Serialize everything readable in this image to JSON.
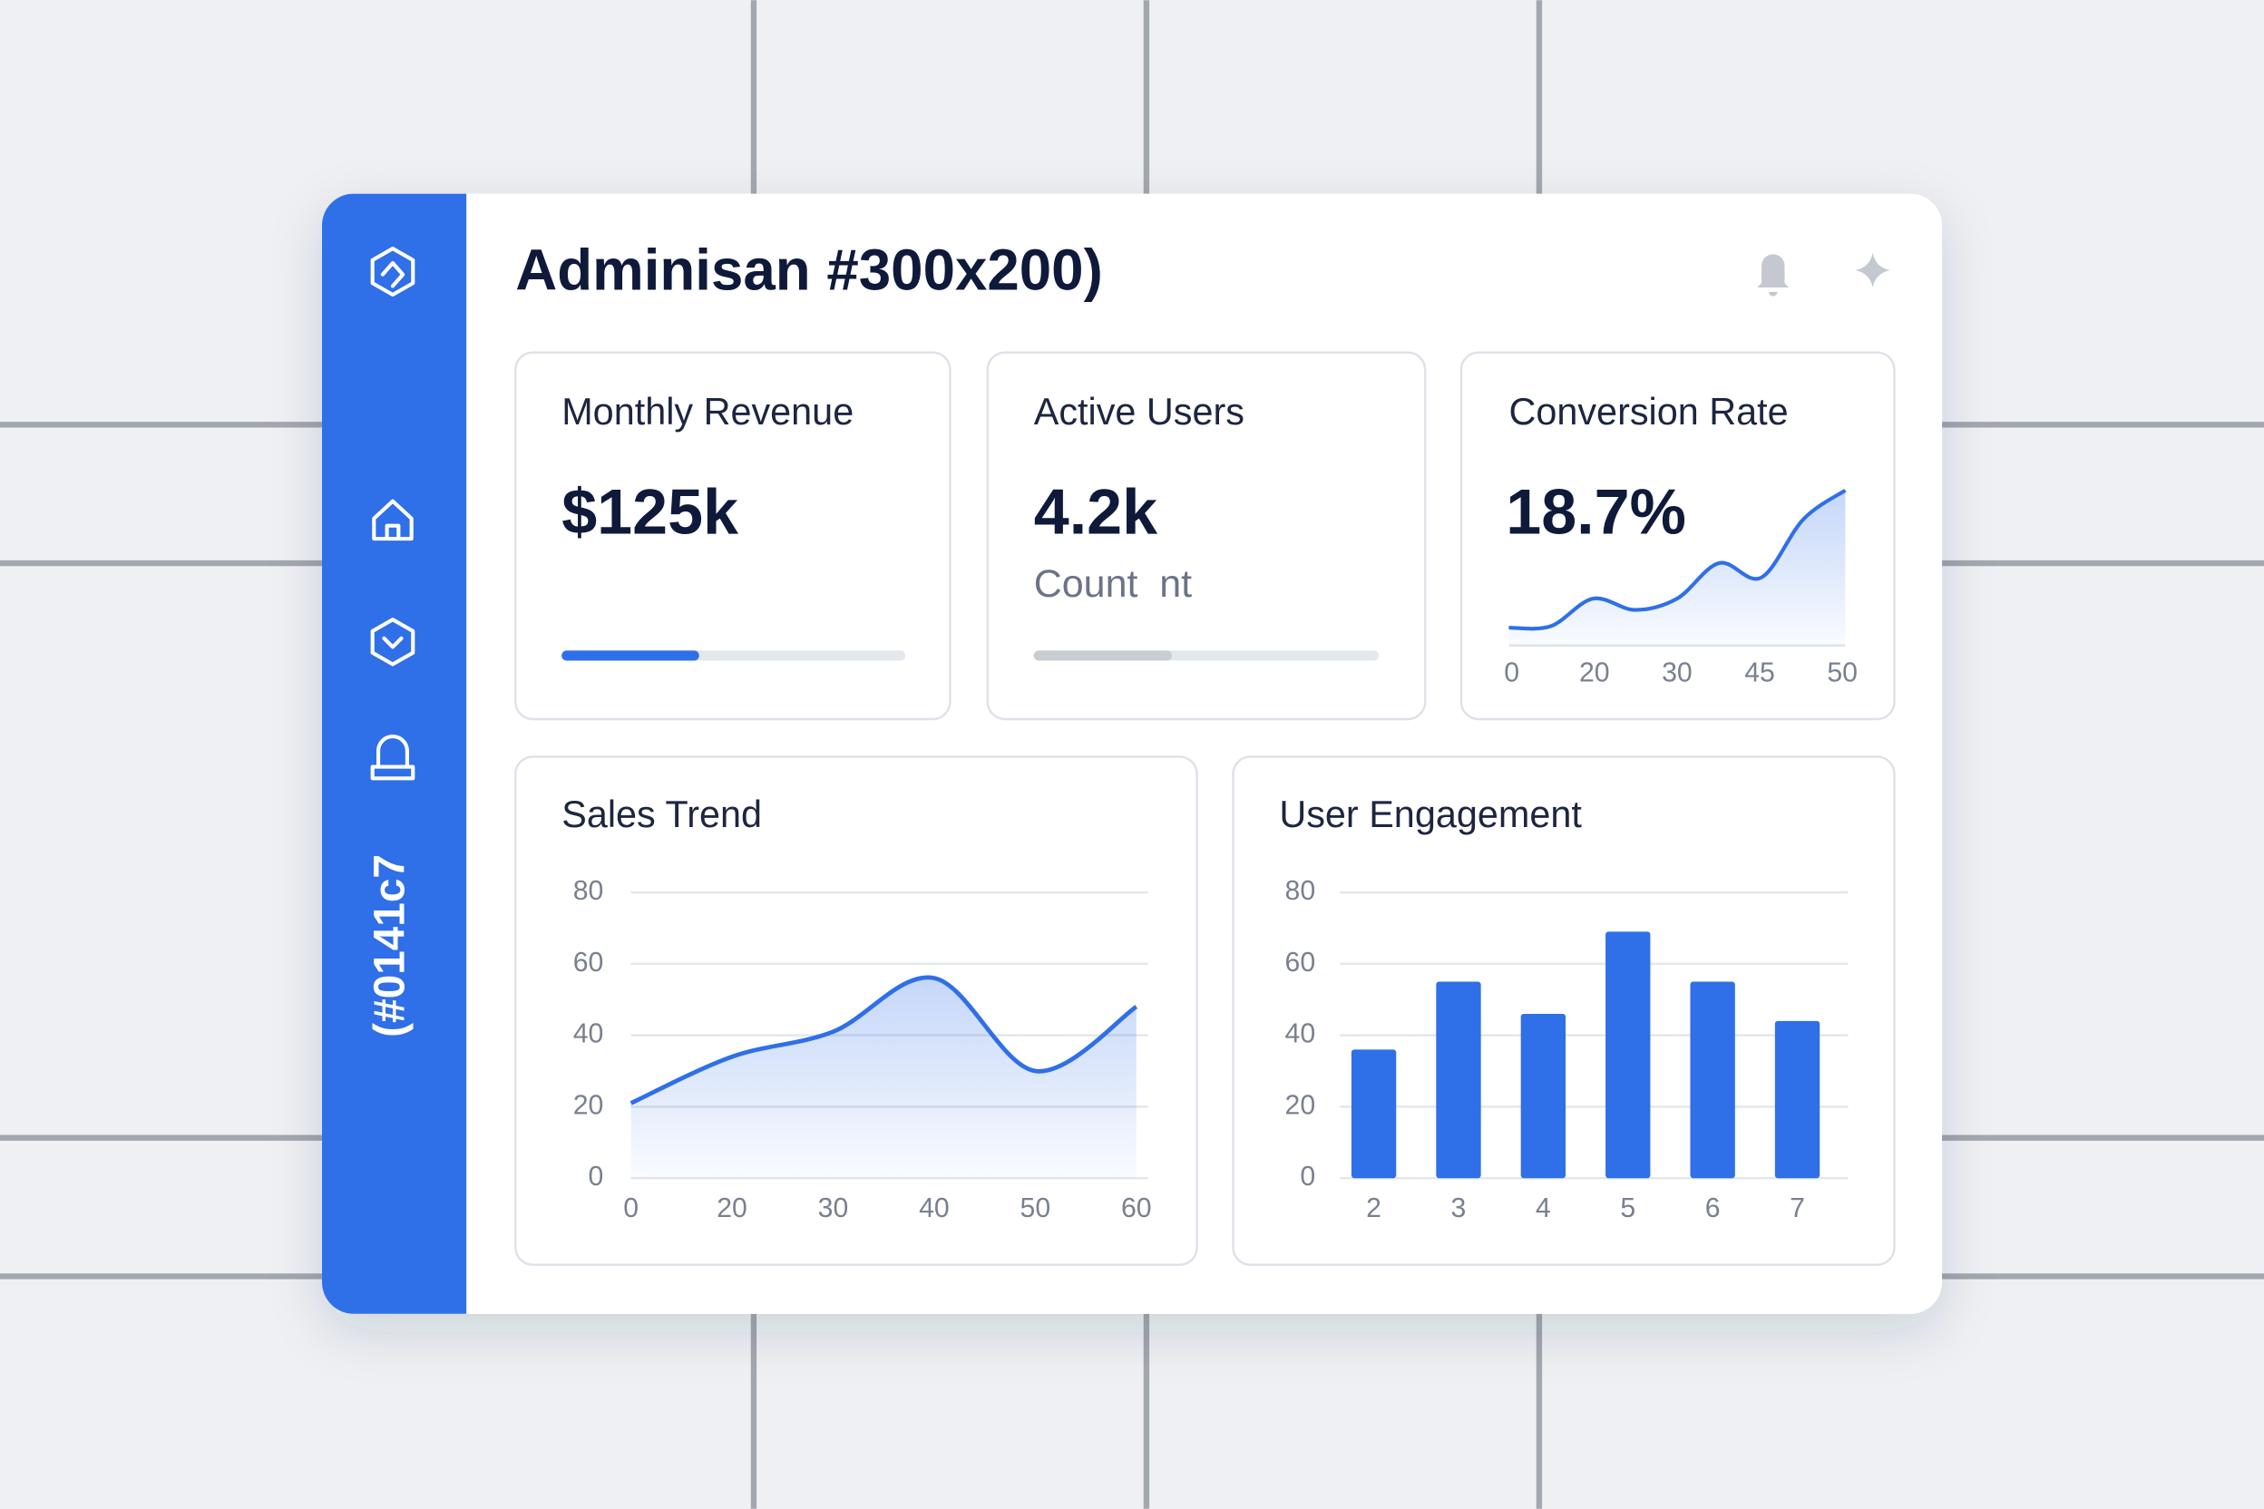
{
  "header": {
    "title": "Adminisan #300x200)"
  },
  "sidebar": {
    "label": "(#0141c7"
  },
  "kpis": [
    {
      "label": "Monthly Revenue",
      "value": "$125k",
      "progress": 40
    },
    {
      "label": "Active Users",
      "value": "4.2k",
      "subtitle": "Count  nt",
      "progress": 40
    },
    {
      "label": "Conversion Rate",
      "value": "18.7%",
      "sparkline": {
        "type": "area",
        "values": [
          11,
          12,
          29,
          22,
          29,
          51,
          42,
          78,
          96
        ],
        "ylim": [
          0,
          100
        ],
        "xticks": [
          "0",
          "20",
          "30",
          "45",
          "50"
        ],
        "color": "#2f6fe8"
      }
    }
  ],
  "charts": [
    {
      "type": "line",
      "title": "Sales Trend",
      "categories": [
        "0",
        "20",
        "30",
        "40",
        "50",
        "60"
      ],
      "values": [
        21,
        34,
        41,
        56,
        30,
        48
      ],
      "color": "#2f6fe8",
      "ylim": [
        0,
        80
      ],
      "yticks": [
        0,
        20,
        40,
        60,
        80
      ],
      "grid": true
    },
    {
      "type": "bar",
      "title": "User Engagement",
      "categories": [
        "2",
        "3",
        "4",
        "5",
        "6",
        "7"
      ],
      "values": [
        36,
        55,
        46,
        69,
        55,
        44
      ],
      "color": "#2f6fe8",
      "ylim": [
        0,
        80
      ],
      "yticks": [
        0,
        20,
        40,
        60,
        80
      ],
      "grid": true
    }
  ]
}
